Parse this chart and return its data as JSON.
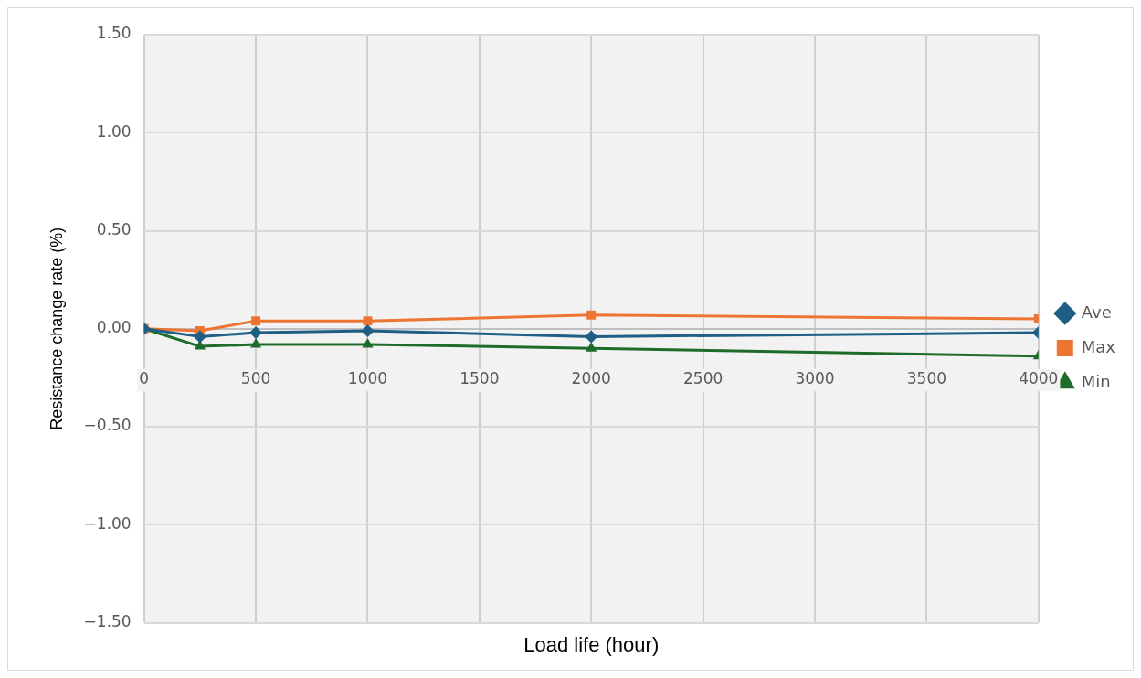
{
  "chart_data": {
    "type": "line",
    "xlabel": "Load life (hour)",
    "ylabel": "Resistance change rate (%)",
    "x": [
      0,
      250,
      500,
      1000,
      2000,
      4000
    ],
    "series": [
      {
        "name": "Ave",
        "color": "#1f5f85",
        "values": [
          0,
          -0.04,
          -0.02,
          -0.01,
          -0.04,
          -0.02
        ],
        "marker": "diamond"
      },
      {
        "name": "Max",
        "color": "#ed7431",
        "values": [
          0,
          -0.01,
          0.04,
          0.04,
          0.07,
          0.05
        ],
        "marker": "square"
      },
      {
        "name": "Min",
        "color": "#1e6b2a",
        "values": [
          0,
          -0.09,
          -0.08,
          -0.08,
          -0.1,
          -0.14
        ],
        "marker": "triangle"
      }
    ],
    "xlim": [
      0,
      4000
    ],
    "xticks": [
      0,
      500,
      1000,
      1500,
      2000,
      2500,
      3000,
      3500,
      4000
    ],
    "ylim": [
      -1.5,
      1.5
    ],
    "yticks": [
      {
        "value": -1.5,
        "label": "−1.50"
      },
      {
        "value": -1,
        "label": "−1.00"
      },
      {
        "value": -0.5,
        "label": "−0.50"
      },
      {
        "value": 0,
        "label": "0.00"
      },
      {
        "value": 0.5,
        "label": "0.50"
      },
      {
        "value": 1,
        "label": "1.00"
      },
      {
        "value": 1.5,
        "label": "1.50"
      }
    ],
    "grid": true,
    "legend": "right",
    "line_style": "solid"
  }
}
